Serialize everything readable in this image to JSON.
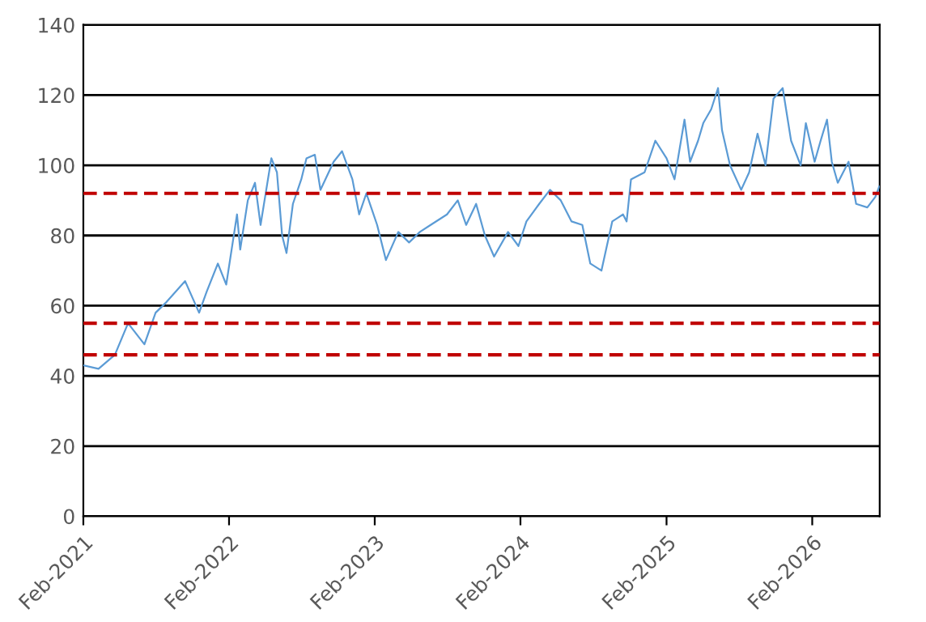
{
  "chart_data": {
    "type": "line",
    "grid": "y",
    "line_style": "solid",
    "marker": "none",
    "x": [
      "2021-02-01",
      "2021-03-11",
      "2021-04-21",
      "2021-05-24",
      "2021-07-04",
      "2021-08-01",
      "2021-08-28",
      "2021-10-14",
      "2021-11-18",
      "2021-12-07",
      "2022-01-04",
      "2022-01-25",
      "2022-02-21",
      "2022-03-01",
      "2022-03-20",
      "2022-04-07",
      "2022-04-21",
      "2022-05-18",
      "2022-06-01",
      "2022-06-14",
      "2022-06-25",
      "2022-07-11",
      "2022-08-01",
      "2022-08-14",
      "2022-09-04",
      "2022-09-18",
      "2022-10-21",
      "2022-11-11",
      "2022-12-07",
      "2022-12-24",
      "2023-01-11",
      "2023-02-07",
      "2023-03-01",
      "2023-04-01",
      "2023-04-28",
      "2023-05-25",
      "2023-06-21",
      "2023-08-01",
      "2023-08-28",
      "2023-09-18",
      "2023-10-13",
      "2023-11-04",
      "2023-11-27",
      "2024-01-01",
      "2024-01-27",
      "2024-02-16",
      "2024-03-19",
      "2024-04-15",
      "2024-05-12",
      "2024-06-08",
      "2024-07-05",
      "2024-07-25",
      "2024-08-22",
      "2024-09-18",
      "2024-10-15",
      "2024-10-24",
      "2024-11-04",
      "2024-12-08",
      "2025-01-04",
      "2025-02-01",
      "2025-02-21",
      "2025-03-18",
      "2025-04-01",
      "2025-04-21",
      "2025-05-04",
      "2025-05-24",
      "2025-06-10",
      "2025-06-20",
      "2025-07-10",
      "2025-08-07",
      "2025-08-27",
      "2025-09-17",
      "2025-10-07",
      "2025-10-27",
      "2025-11-19",
      "2025-12-10",
      "2026-01-03",
      "2026-01-16",
      "2026-02-07",
      "2026-02-22",
      "2026-03-10",
      "2026-03-22",
      "2026-04-06",
      "2026-05-03",
      "2026-05-22",
      "2026-06-19",
      "2026-07-09",
      "2026-07-19"
    ],
    "series": [
      {
        "color": "#5b9bd5",
        "values": [
          43,
          42,
          46,
          55,
          49,
          58,
          61,
          67,
          58,
          64,
          72,
          66,
          86,
          76,
          90,
          95,
          83,
          102,
          98,
          80,
          75,
          89,
          96,
          102,
          103,
          93,
          101,
          104,
          96,
          86,
          92,
          83,
          73,
          81,
          78,
          81,
          83,
          86,
          90,
          83,
          89,
          80,
          74,
          81,
          77,
          84,
          89,
          93,
          90,
          84,
          83,
          72,
          70,
          84,
          86,
          84,
          96,
          98,
          107,
          102,
          96,
          113,
          101,
          107,
          112,
          116,
          122,
          110,
          100,
          93,
          98,
          109,
          100,
          119,
          122,
          107,
          100,
          112,
          101,
          107,
          113,
          101,
          95,
          101,
          89,
          88,
          91,
          94
        ]
      }
    ],
    "xlim": [
      "2021-02-01",
      "2026-07-20"
    ],
    "xticks": [
      {
        "value": "2021-02-01",
        "label": "Feb-2021"
      },
      {
        "value": "2022-02-01",
        "label": "Feb-2022"
      },
      {
        "value": "2023-02-01",
        "label": "Feb-2023"
      },
      {
        "value": "2024-02-01",
        "label": "Feb-2024"
      },
      {
        "value": "2025-02-01",
        "label": "Feb-2025"
      },
      {
        "value": "2026-02-01",
        "label": "Feb-2026"
      }
    ],
    "ylim": [
      0,
      140
    ],
    "yticks": [
      0,
      20,
      40,
      60,
      80,
      100,
      120,
      140
    ],
    "ref_lines": [
      {
        "axis": "y",
        "value": 92,
        "color": "#c00000",
        "line_style": "dashed"
      },
      {
        "axis": "y",
        "value": 55,
        "color": "#c00000",
        "line_style": "dashed"
      },
      {
        "axis": "y",
        "value": 46,
        "color": "#c00000",
        "line_style": "dashed"
      }
    ]
  }
}
